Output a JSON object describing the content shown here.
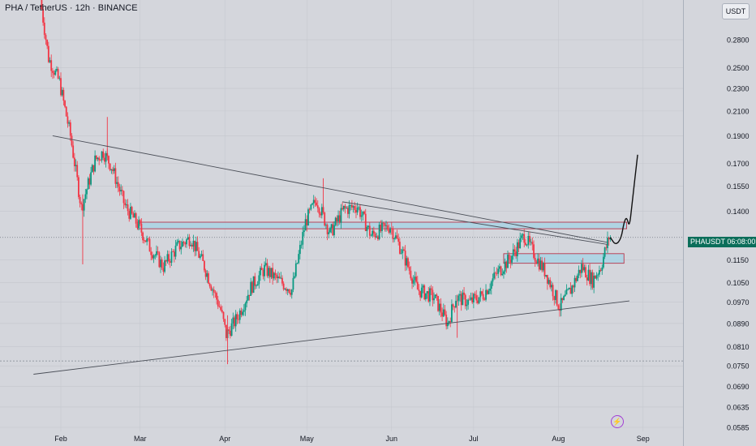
{
  "chart_title": "PHA / TetherUS · 12h · BINANCE",
  "currency_button": "USDT",
  "price_tag": {
    "symbol": "PHAUSDT",
    "countdown": "06:08:00"
  },
  "colors": {
    "up": "#089981",
    "down": "#f23645",
    "grid": "#c3c6cd",
    "zone_fill": "#a9d4e4",
    "zone_border": "#b6233a"
  },
  "chart_data": {
    "type": "candlestick",
    "scale": "log",
    "interval": "12h",
    "symbol": "PHA/USDT",
    "exchange": "BINANCE",
    "x_ticks": [
      "Feb",
      "Mar",
      "Apr",
      "May",
      "Jun",
      "Jul",
      "Aug",
      "Sep"
    ],
    "y_ticks": [
      "0.2800",
      "0.2500",
      "0.2300",
      "0.2100",
      "0.1900",
      "0.1700",
      "0.1550",
      "0.1400",
      "0.1150",
      "0.1050",
      "0.0970",
      "0.0890",
      "0.0810",
      "0.0750",
      "0.0690",
      "0.0635",
      "0.0585"
    ],
    "ylim": [
      0.0585,
      0.33
    ],
    "last_price": 0.126,
    "key_levels": [
      0.0765
    ],
    "path": [
      [
        "2024-01-25",
        0.33
      ],
      [
        "2024-01-28",
        0.26
      ],
      [
        "2024-02-01",
        0.236
      ],
      [
        "2024-02-05",
        0.19
      ],
      [
        "2024-02-09",
        0.142
      ],
      [
        "2024-02-14",
        0.172
      ],
      [
        "2024-02-17",
        0.178
      ],
      [
        "2024-02-20",
        0.168
      ],
      [
        "2024-02-25",
        0.143
      ],
      [
        "2024-03-01",
        0.132
      ],
      [
        "2024-03-05",
        0.121
      ],
      [
        "2024-03-10",
        0.112
      ],
      [
        "2024-03-15",
        0.121
      ],
      [
        "2024-03-20",
        0.126
      ],
      [
        "2024-03-25",
        0.112
      ],
      [
        "2024-03-31",
        0.094
      ],
      [
        "2024-04-02",
        0.085
      ],
      [
        "2024-04-06",
        0.091
      ],
      [
        "2024-04-11",
        0.103
      ],
      [
        "2024-04-16",
        0.111
      ],
      [
        "2024-04-21",
        0.106
      ],
      [
        "2024-04-26",
        0.102
      ],
      [
        "2024-05-01",
        0.134
      ],
      [
        "2024-05-05",
        0.147
      ],
      [
        "2024-05-10",
        0.128
      ],
      [
        "2024-05-15",
        0.141
      ],
      [
        "2024-05-20",
        0.143
      ],
      [
        "2024-05-25",
        0.127
      ],
      [
        "2024-06-01",
        0.132
      ],
      [
        "2024-06-05",
        0.12
      ],
      [
        "2024-06-11",
        0.102
      ],
      [
        "2024-06-17",
        0.099
      ],
      [
        "2024-06-22",
        0.089
      ],
      [
        "2024-06-25",
        0.099
      ],
      [
        "2024-06-30",
        0.097
      ],
      [
        "2024-07-05",
        0.1
      ],
      [
        "2024-07-10",
        0.109
      ],
      [
        "2024-07-15",
        0.116
      ],
      [
        "2024-07-20",
        0.127
      ],
      [
        "2024-07-24",
        0.117
      ],
      [
        "2024-07-28",
        0.109
      ],
      [
        "2024-08-02",
        0.095
      ],
      [
        "2024-08-06",
        0.102
      ],
      [
        "2024-08-10",
        0.112
      ],
      [
        "2024-08-14",
        0.106
      ],
      [
        "2024-08-17",
        0.112
      ],
      [
        "2024-08-20",
        0.126
      ]
    ],
    "wicks": [
      [
        "2024-02-09",
        0.113,
        0.15
      ],
      [
        "2024-02-18",
        0.172,
        0.205
      ],
      [
        "2024-04-02",
        0.0755,
        0.092
      ],
      [
        "2024-05-07",
        0.14,
        0.16
      ],
      [
        "2024-06-25",
        0.084,
        0.1
      ]
    ],
    "trendlines": [
      {
        "from": [
          "2024-01-29",
          0.19
        ],
        "to": [
          "2024-08-19",
          0.1235
        ]
      },
      {
        "from": [
          "2024-05-14",
          0.1455
        ],
        "to": [
          "2024-08-19",
          0.1225
        ]
      },
      {
        "from": [
          "2024-01-22",
          0.0725
        ],
        "to": [
          "2024-08-27",
          0.0975
        ]
      }
    ],
    "zones": [
      {
        "from": "2024-02-29",
        "to": "2024-08-26",
        "low": 0.1305,
        "high": 0.134
      },
      {
        "from": "2024-07-12",
        "to": "2024-08-25",
        "low": 0.1135,
        "high": 0.118
      }
    ],
    "projection": [
      [
        "2024-08-20",
        0.126
      ],
      [
        "2024-08-22",
        0.122
      ],
      [
        "2024-08-24",
        0.1255
      ],
      [
        "2024-08-25",
        0.134
      ],
      [
        "2024-08-26",
        0.137
      ],
      [
        "2024-08-27",
        0.131
      ],
      [
        "2024-08-28",
        0.145
      ],
      [
        "2024-08-30",
        0.176
      ]
    ]
  }
}
